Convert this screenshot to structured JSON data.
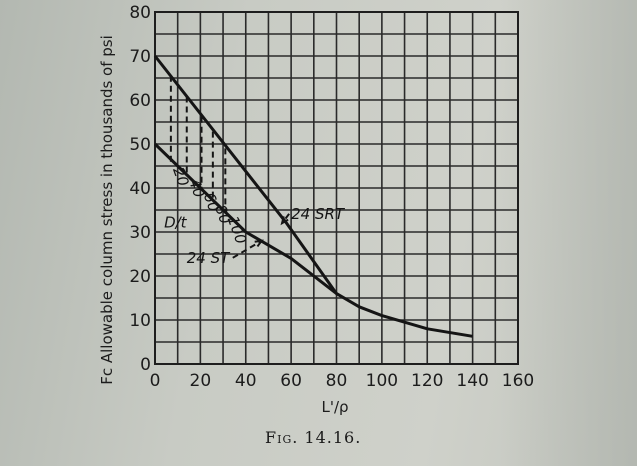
{
  "figure_caption": "Fig. 14.16.",
  "chart_data": {
    "type": "line",
    "xlabel": "L'/ρ",
    "ylabel": "Fc Allowable column stress in thousands of psi",
    "xlim": [
      0,
      160
    ],
    "ylim": [
      0,
      80
    ],
    "x_ticks": [
      0,
      20,
      40,
      60,
      80,
      100,
      120,
      140,
      160
    ],
    "y_ticks": [
      0,
      10,
      20,
      30,
      40,
      50,
      60,
      70,
      80
    ],
    "grid": true,
    "series": [
      {
        "name": "24 SRT",
        "points": [
          [
            0,
            70
          ],
          [
            58,
            32
          ],
          [
            80,
            16
          ],
          [
            90,
            13
          ],
          [
            100,
            11
          ],
          [
            120,
            8
          ],
          [
            140,
            6.3
          ]
        ]
      },
      {
        "name": "24 ST",
        "points": [
          [
            0,
            50
          ],
          [
            40,
            30
          ],
          [
            60,
            24
          ],
          [
            80,
            16
          ]
        ]
      }
    ],
    "dt_lines": [
      {
        "label": "20",
        "x": 7,
        "y_top": 65.5,
        "y_bottom": 45.6
      },
      {
        "label": "40",
        "x": 14,
        "y_top": 60.8,
        "y_bottom": 43
      },
      {
        "label": "60",
        "x": 20.5,
        "y_top": 56.2,
        "y_bottom": 39.8
      },
      {
        "label": "80",
        "x": 25.5,
        "y_top": 52.8,
        "y_bottom": 37
      },
      {
        "label": "100",
        "x": 31,
        "y_top": 49,
        "y_bottom": 34.5
      }
    ],
    "annotations": [
      {
        "text": "24 SRT",
        "x": 60,
        "y": 33,
        "points_to": [
          56,
          32
        ]
      },
      {
        "text": "24 ST",
        "x": 14,
        "y": 23,
        "points_to": [
          47,
          28
        ]
      },
      {
        "text": "D/t",
        "x": 4,
        "y": 31
      }
    ]
  }
}
